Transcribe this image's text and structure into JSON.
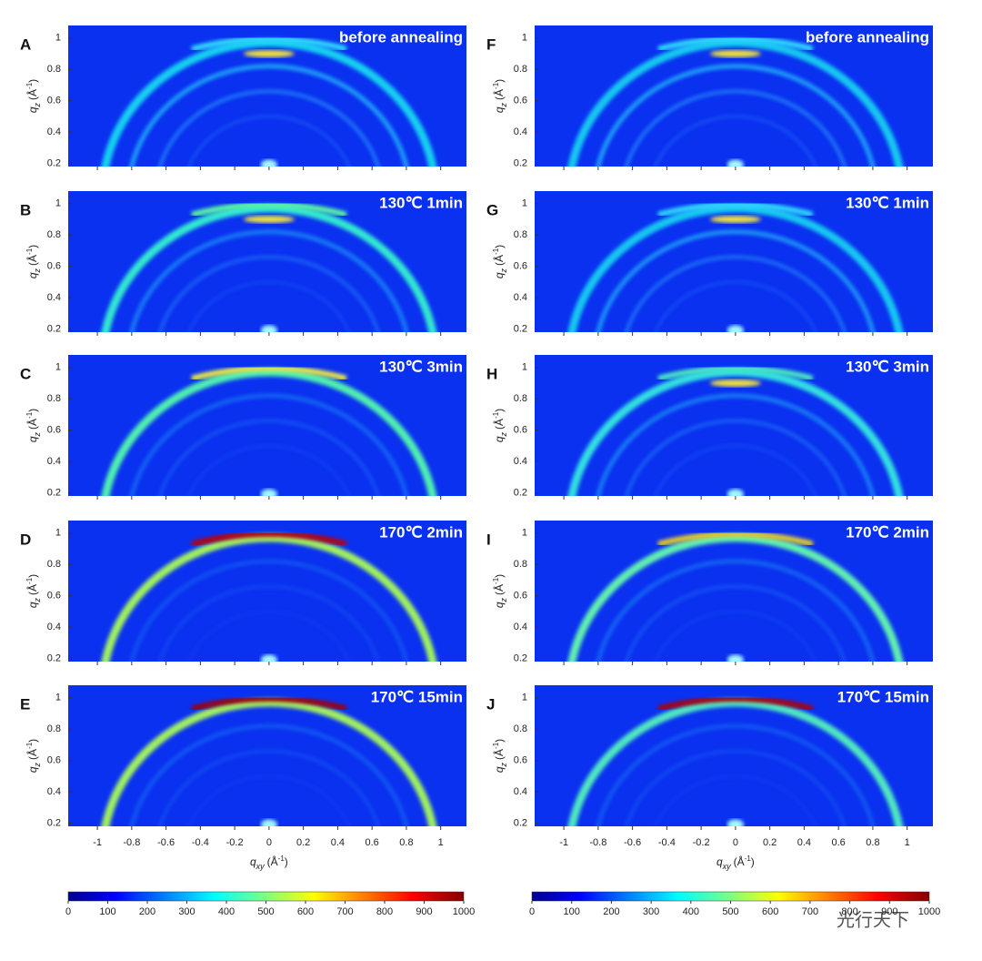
{
  "panels": [
    {
      "letter": "A",
      "annotation": "before annealing"
    },
    {
      "letter": "B",
      "annotation": "130℃ 1min"
    },
    {
      "letter": "C",
      "annotation": "130℃ 3min"
    },
    {
      "letter": "D",
      "annotation": "170℃ 2min"
    },
    {
      "letter": "E",
      "annotation": "170℃ 15min"
    },
    {
      "letter": "F",
      "annotation": "before annealing"
    },
    {
      "letter": "G",
      "annotation": "130℃ 1min"
    },
    {
      "letter": "H",
      "annotation": "130℃ 3min"
    },
    {
      "letter": "I",
      "annotation": "170℃ 2min"
    },
    {
      "letter": "J",
      "annotation": "170℃ 15min"
    }
  ],
  "axes": {
    "xlim": [
      -1.17,
      1.15
    ],
    "ylim": [
      0.18,
      1.08
    ],
    "xticks": [
      -1,
      -0.8,
      -0.6,
      -0.4,
      -0.2,
      0,
      0.2,
      0.4,
      0.6,
      0.8,
      1
    ],
    "yticks": [
      0.2,
      0.4,
      0.6,
      0.8,
      1
    ],
    "x_label": {
      "var": "q",
      "sub": "xy",
      "unit": "(Å",
      "sup": "-1",
      "end": ")"
    },
    "y_label": {
      "var": "q",
      "sub": "z",
      "unit": "(Å",
      "sup": "-1",
      "end": ")"
    }
  },
  "colorbar": {
    "lim": [
      0,
      1000
    ],
    "ticks": [
      0,
      100,
      200,
      300,
      400,
      500,
      600,
      700,
      800,
      900,
      1000
    ]
  },
  "watermark": "光行天下"
}
